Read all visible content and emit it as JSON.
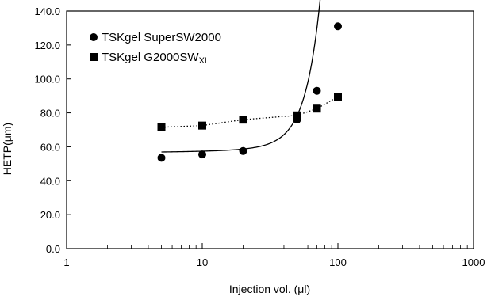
{
  "chart_data": {
    "type": "scatter",
    "xlabel": "Injection vol. (μl)",
    "ylabel": "HETP(μm)",
    "xscale": "log",
    "xlim": [
      1,
      1000
    ],
    "ylim": [
      0,
      140
    ],
    "xticks": [
      1,
      10,
      100,
      1000
    ],
    "xtick_labels": [
      "1",
      "10",
      "100",
      "1000"
    ],
    "yticks": [
      0,
      20,
      40,
      60,
      80,
      100,
      120,
      140
    ],
    "ytick_labels": [
      "0.0",
      "20.0",
      "40.0",
      "60.0",
      "80.0",
      "100.0",
      "120.0",
      "140.0"
    ],
    "grid": false,
    "legend_position": "top-left",
    "series": [
      {
        "name": "TSKgel SuperSW2000",
        "marker": "circle",
        "line": "solid curve",
        "color": "#000000",
        "x": [
          5,
          10,
          20,
          50,
          70,
          100
        ],
        "y": [
          53.5,
          55.5,
          57.5,
          76,
          93,
          131
        ]
      },
      {
        "name": "TSKgel G2000SWXL",
        "name_main": "TSKgel G2000SW",
        "name_subscript": "XL",
        "marker": "square",
        "line": "dotted",
        "color": "#000000",
        "x": [
          5,
          10,
          20,
          50,
          70,
          100
        ],
        "y": [
          71.5,
          72.5,
          76,
          78.5,
          82.5,
          89.5
        ]
      }
    ]
  }
}
